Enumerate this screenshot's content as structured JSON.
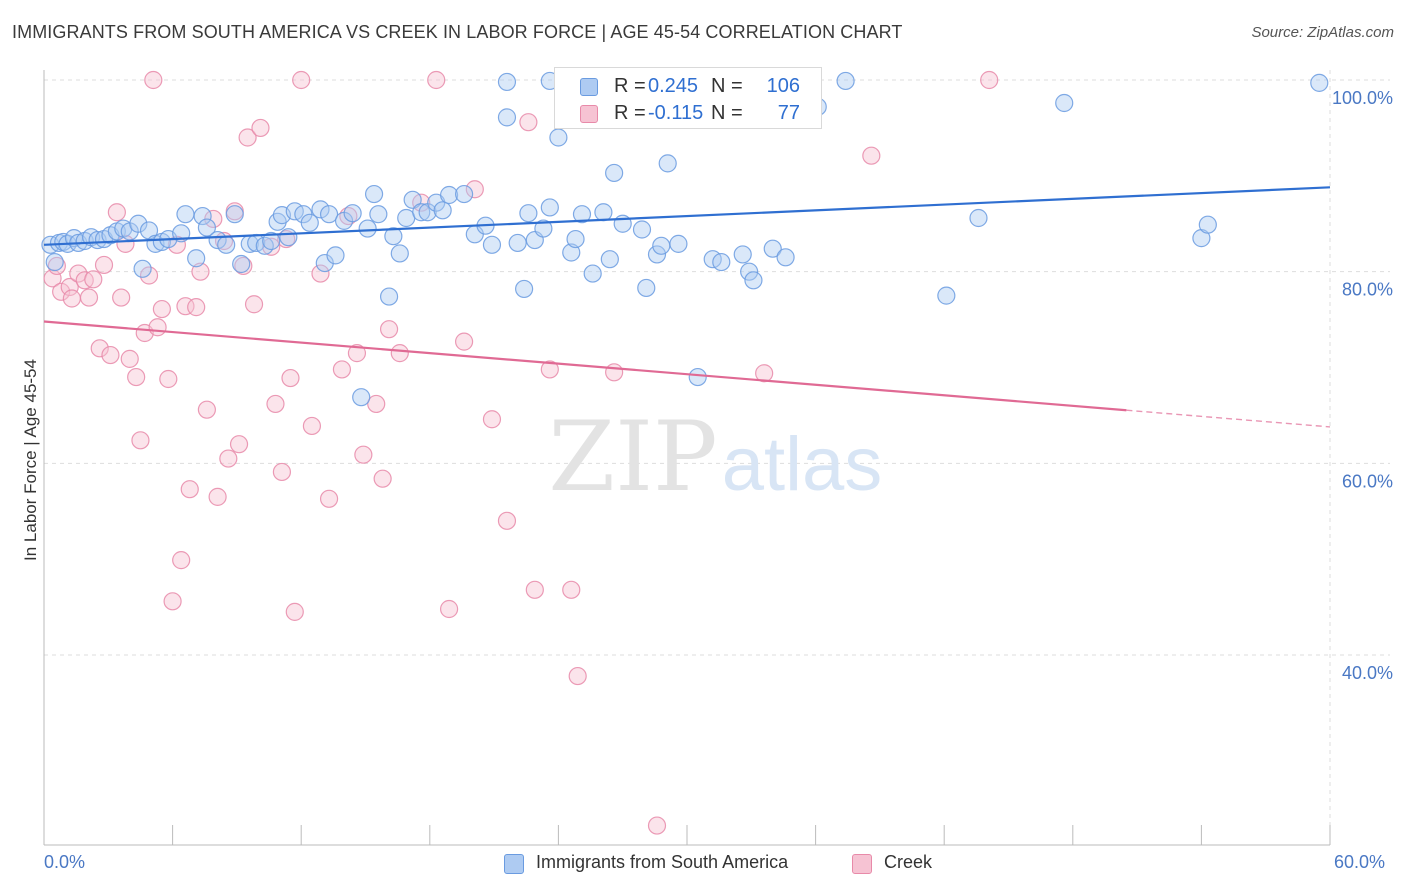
{
  "title": "IMMIGRANTS FROM SOUTH AMERICA VS CREEK IN LABOR FORCE | AGE 45-54 CORRELATION CHART",
  "source": "Source: ZipAtlas.com",
  "watermark": {
    "zip": "ZIP",
    "atlas": "atlas"
  },
  "colors": {
    "blue": "#6a9be0",
    "blue_fill": "#aecbf2",
    "blue_line": "#2f6fd1",
    "pink": "#e88aa9",
    "pink_fill": "#f6c3d3",
    "pink_line": "#e06a94",
    "axis_text": "#4a78c4",
    "grid": "#dddddd"
  },
  "legend_top": [
    {
      "r_label": "R =",
      "r_value": "0.245",
      "n_label": "N =",
      "n_value": "106"
    },
    {
      "r_label": "R =",
      "r_value": "-0.115",
      "n_label": "N =",
      "n_value": "77"
    }
  ],
  "legend_bottom": [
    {
      "label": "Immigrants from South America"
    },
    {
      "label": "Creek"
    }
  ],
  "chart_data": {
    "type": "scatter",
    "title": "IMMIGRANTS FROM SOUTH AMERICA VS CREEK IN LABOR FORCE | AGE 45-54 CORRELATION CHART",
    "xlabel": "",
    "ylabel": "In Labor Force | Age 45-54",
    "xlim": [
      0,
      60
    ],
    "ylim": [
      22,
      102
    ],
    "x_tick_labels": [
      "0.0%",
      "60.0%"
    ],
    "y_ticks": [
      40,
      60,
      80,
      100
    ],
    "y_tick_labels": [
      "40.0%",
      "60.0%",
      "80.0%",
      "100.0%"
    ],
    "grid": true,
    "legend_position": "top-center",
    "series": [
      {
        "name": "Immigrants from South America",
        "color": "blue",
        "trend": {
          "x": [
            0,
            60
          ],
          "y": [
            82.8,
            88.8
          ],
          "dashed_from": null
        },
        "points": [
          [
            0.3,
            82.8
          ],
          [
            0.5,
            81.0
          ],
          [
            0.7,
            83.0
          ],
          [
            0.9,
            83.1
          ],
          [
            1.1,
            82.9
          ],
          [
            1.4,
            83.5
          ],
          [
            1.6,
            83.0
          ],
          [
            1.9,
            83.2
          ],
          [
            2.2,
            83.6
          ],
          [
            2.5,
            83.3
          ],
          [
            2.8,
            83.4
          ],
          [
            3.1,
            83.8
          ],
          [
            3.4,
            84.2
          ],
          [
            3.7,
            84.5
          ],
          [
            4.0,
            84.2
          ],
          [
            4.4,
            85.0
          ],
          [
            4.6,
            80.3
          ],
          [
            4.9,
            84.3
          ],
          [
            5.2,
            82.9
          ],
          [
            5.5,
            83.1
          ],
          [
            5.8,
            83.4
          ],
          [
            6.4,
            84.0
          ],
          [
            6.6,
            86.0
          ],
          [
            7.1,
            81.4
          ],
          [
            7.4,
            85.8
          ],
          [
            7.6,
            84.6
          ],
          [
            8.1,
            83.3
          ],
          [
            8.5,
            82.8
          ],
          [
            8.9,
            86.0
          ],
          [
            9.2,
            80.8
          ],
          [
            9.6,
            82.9
          ],
          [
            9.9,
            83.0
          ],
          [
            10.3,
            82.7
          ],
          [
            10.6,
            83.2
          ],
          [
            10.9,
            85.2
          ],
          [
            11.1,
            85.9
          ],
          [
            11.4,
            83.6
          ],
          [
            11.7,
            86.3
          ],
          [
            12.1,
            86.0
          ],
          [
            12.4,
            85.1
          ],
          [
            12.9,
            86.5
          ],
          [
            13.1,
            80.9
          ],
          [
            13.3,
            86.0
          ],
          [
            13.6,
            81.7
          ],
          [
            14.0,
            85.3
          ],
          [
            14.4,
            86.1
          ],
          [
            14.8,
            66.9
          ],
          [
            15.1,
            84.5
          ],
          [
            15.4,
            88.1
          ],
          [
            15.6,
            86.0
          ],
          [
            16.1,
            77.4
          ],
          [
            16.3,
            83.7
          ],
          [
            16.6,
            81.9
          ],
          [
            16.9,
            85.6
          ],
          [
            17.2,
            87.5
          ],
          [
            17.6,
            86.2
          ],
          [
            17.9,
            86.2
          ],
          [
            18.3,
            87.2
          ],
          [
            18.6,
            86.4
          ],
          [
            18.9,
            88.0
          ],
          [
            19.6,
            88.1
          ],
          [
            20.1,
            83.9
          ],
          [
            20.6,
            84.8
          ],
          [
            20.9,
            82.8
          ],
          [
            21.6,
            96.1
          ],
          [
            22.1,
            83.0
          ],
          [
            22.4,
            78.2
          ],
          [
            22.6,
            86.1
          ],
          [
            22.9,
            83.3
          ],
          [
            23.3,
            84.5
          ],
          [
            23.6,
            86.7
          ],
          [
            24.0,
            94.0
          ],
          [
            24.6,
            82.0
          ],
          [
            24.8,
            83.4
          ],
          [
            25.1,
            86.0
          ],
          [
            25.6,
            79.8
          ],
          [
            26.1,
            86.2
          ],
          [
            26.4,
            81.3
          ],
          [
            26.6,
            90.3
          ],
          [
            27.0,
            85.0
          ],
          [
            27.9,
            84.4
          ],
          [
            28.1,
            78.3
          ],
          [
            28.6,
            81.8
          ],
          [
            28.8,
            82.7
          ],
          [
            29.1,
            91.3
          ],
          [
            29.6,
            82.9
          ],
          [
            30.5,
            69.0
          ],
          [
            31.2,
            81.3
          ],
          [
            31.6,
            81.0
          ],
          [
            32.6,
            81.8
          ],
          [
            32.9,
            80.0
          ],
          [
            33.1,
            79.1
          ],
          [
            34.0,
            82.4
          ],
          [
            34.6,
            81.5
          ],
          [
            36.1,
            97.2
          ],
          [
            37.4,
            99.9
          ],
          [
            42.1,
            77.5
          ],
          [
            43.6,
            85.6
          ],
          [
            47.6,
            97.6
          ],
          [
            54.0,
            83.5
          ],
          [
            54.3,
            84.9
          ],
          [
            59.5,
            99.7
          ],
          [
            21.6,
            99.8
          ],
          [
            23.6,
            99.9
          ],
          [
            26.5,
            99.8
          ],
          [
            35.1,
            99.9
          ]
        ]
      },
      {
        "name": "Creek",
        "color": "pink",
        "trend": {
          "x": [
            0,
            60
          ],
          "y": [
            74.8,
            63.8
          ],
          "dashed_from": 50.5
        },
        "points": [
          [
            0.4,
            79.3
          ],
          [
            0.6,
            80.6
          ],
          [
            0.8,
            77.9
          ],
          [
            1.2,
            78.4
          ],
          [
            1.3,
            77.2
          ],
          [
            1.6,
            79.8
          ],
          [
            1.9,
            79.1
          ],
          [
            2.1,
            77.3
          ],
          [
            2.3,
            79.2
          ],
          [
            2.6,
            72.0
          ],
          [
            2.8,
            80.7
          ],
          [
            3.1,
            71.3
          ],
          [
            3.4,
            86.2
          ],
          [
            3.6,
            77.3
          ],
          [
            3.8,
            82.9
          ],
          [
            4.0,
            70.9
          ],
          [
            4.3,
            69.0
          ],
          [
            4.5,
            62.4
          ],
          [
            4.7,
            73.6
          ],
          [
            4.9,
            79.6
          ],
          [
            5.1,
            100.0
          ],
          [
            5.3,
            74.2
          ],
          [
            5.5,
            76.1
          ],
          [
            5.8,
            68.8
          ],
          [
            6.0,
            45.6
          ],
          [
            6.2,
            82.8
          ],
          [
            6.4,
            49.9
          ],
          [
            6.6,
            76.4
          ],
          [
            6.8,
            57.3
          ],
          [
            7.1,
            76.3
          ],
          [
            7.3,
            80.0
          ],
          [
            7.6,
            65.6
          ],
          [
            7.9,
            85.5
          ],
          [
            8.1,
            56.5
          ],
          [
            8.4,
            83.2
          ],
          [
            8.6,
            60.5
          ],
          [
            8.9,
            86.3
          ],
          [
            9.1,
            62.0
          ],
          [
            9.3,
            80.6
          ],
          [
            9.5,
            94.0
          ],
          [
            9.8,
            76.6
          ],
          [
            10.1,
            95.0
          ],
          [
            10.6,
            82.6
          ],
          [
            10.8,
            66.2
          ],
          [
            11.1,
            59.1
          ],
          [
            11.3,
            83.4
          ],
          [
            11.5,
            68.9
          ],
          [
            11.7,
            44.5
          ],
          [
            12.0,
            100.0
          ],
          [
            12.5,
            63.9
          ],
          [
            12.9,
            79.8
          ],
          [
            13.3,
            56.3
          ],
          [
            13.9,
            69.8
          ],
          [
            14.2,
            85.8
          ],
          [
            14.6,
            71.5
          ],
          [
            14.9,
            60.9
          ],
          [
            15.5,
            66.2
          ],
          [
            15.8,
            58.4
          ],
          [
            16.1,
            74.0
          ],
          [
            16.6,
            71.5
          ],
          [
            17.6,
            87.2
          ],
          [
            18.3,
            100.0
          ],
          [
            18.9,
            44.8
          ],
          [
            19.6,
            72.7
          ],
          [
            20.1,
            88.6
          ],
          [
            20.9,
            64.6
          ],
          [
            21.6,
            54.0
          ],
          [
            22.6,
            95.6
          ],
          [
            22.9,
            46.8
          ],
          [
            23.6,
            69.8
          ],
          [
            24.6,
            46.8
          ],
          [
            24.9,
            37.8
          ],
          [
            26.6,
            69.5
          ],
          [
            28.6,
            22.2
          ],
          [
            33.6,
            69.4
          ],
          [
            38.6,
            92.1
          ],
          [
            44.1,
            100.0
          ]
        ]
      }
    ]
  }
}
